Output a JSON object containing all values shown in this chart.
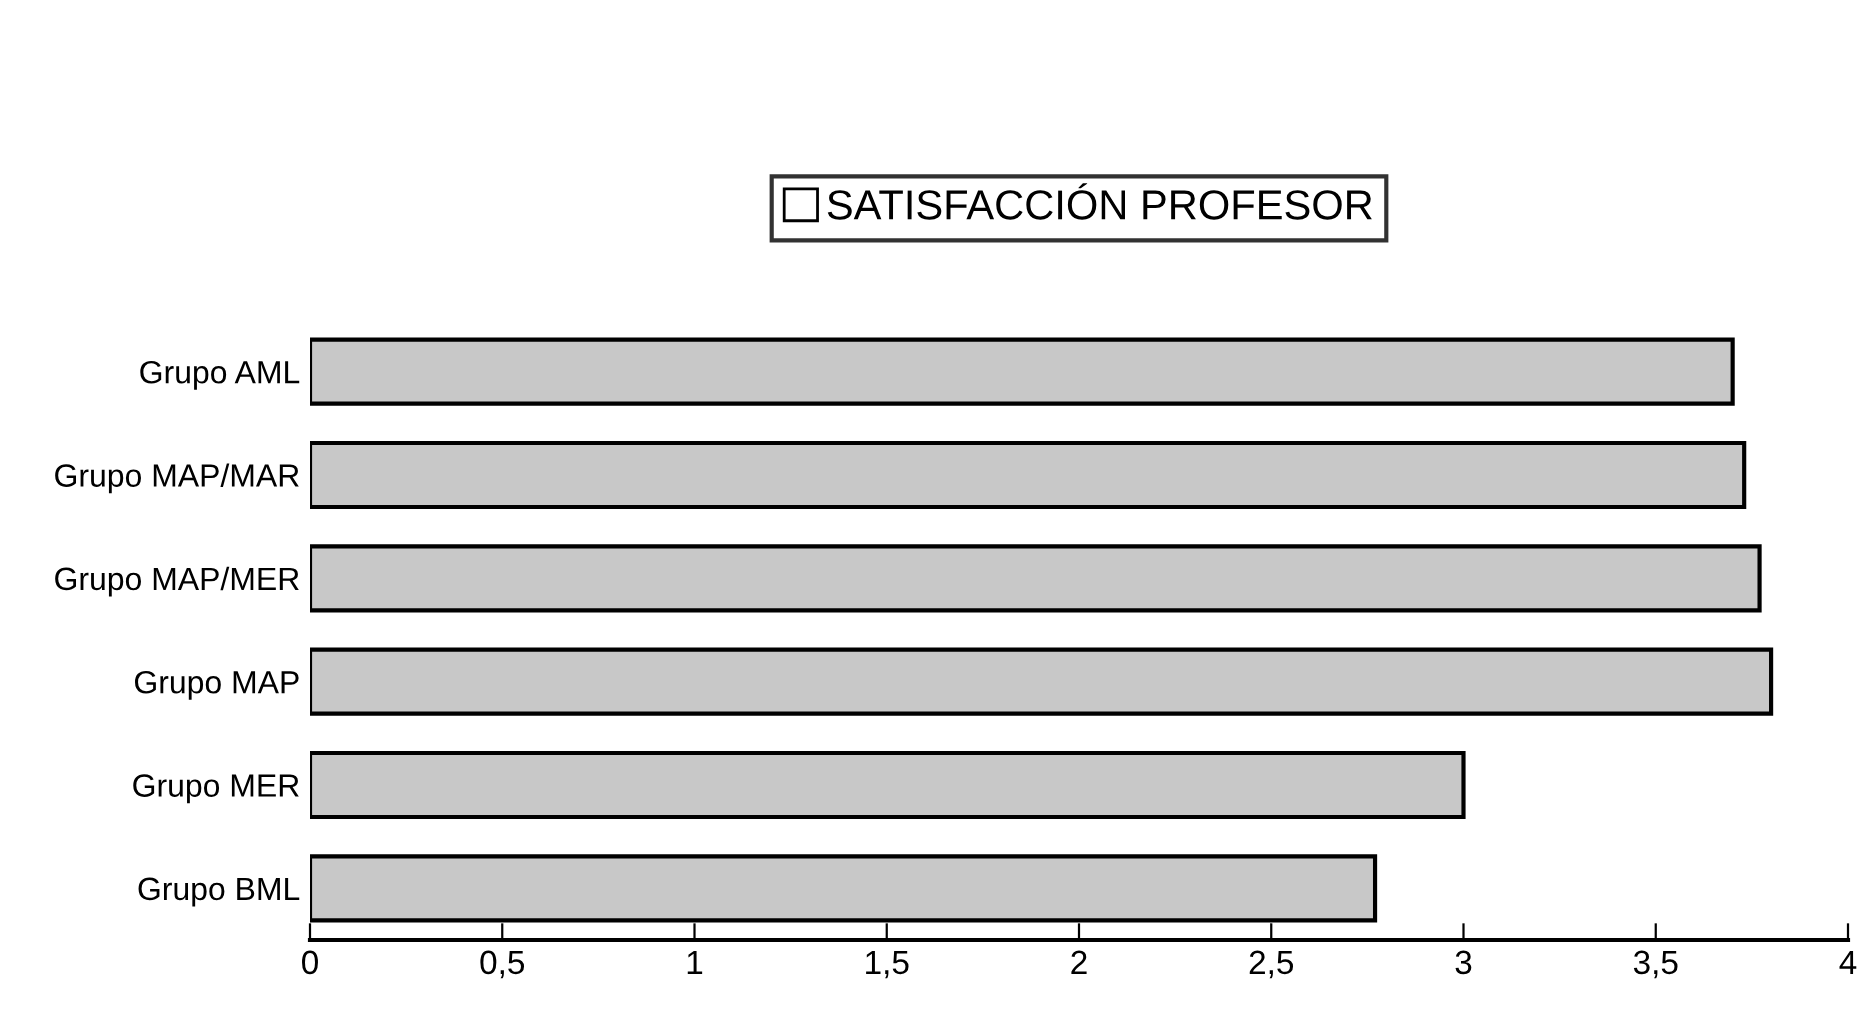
{
  "chart_data": {
    "type": "bar",
    "orientation": "horizontal",
    "categories": [
      "Grupo AML",
      "Grupo MAP/MAR",
      "Grupo MAP/MER",
      "Grupo MAP",
      "Grupo MER",
      "Grupo BML"
    ],
    "series": [
      {
        "name": "SATISFACCIÓN PROFESOR",
        "color": "#c8c8c8",
        "values": [
          3.7,
          3.73,
          3.77,
          3.8,
          3.0,
          2.77
        ]
      }
    ],
    "xlim": [
      0,
      4
    ],
    "xticks": [
      0,
      {
        "value": 0.5,
        "label": "0,5"
      },
      1,
      {
        "value": 1.5,
        "label": "1,5"
      },
      2,
      {
        "value": 2.5,
        "label": "2,5"
      },
      3,
      {
        "value": 3.5,
        "label": "3,5"
      },
      4
    ],
    "legend": "top",
    "grid": false
  }
}
